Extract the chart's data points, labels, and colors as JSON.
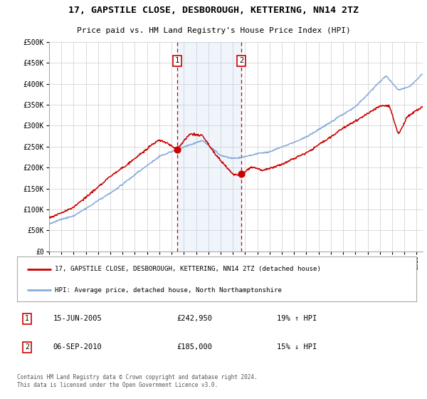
{
  "title": "17, GAPSTILE CLOSE, DESBOROUGH, KETTERING, NN14 2TZ",
  "subtitle": "Price paid vs. HM Land Registry's House Price Index (HPI)",
  "legend_line1": "17, GAPSTILE CLOSE, DESBOROUGH, KETTERING, NN14 2TZ (detached house)",
  "legend_line2": "HPI: Average price, detached house, North Northamptonshire",
  "footnote": "Contains HM Land Registry data © Crown copyright and database right 2024.\nThis data is licensed under the Open Government Licence v3.0.",
  "annotation1_date": "15-JUN-2005",
  "annotation1_price": "£242,950",
  "annotation1_hpi": "19% ↑ HPI",
  "annotation2_date": "06-SEP-2010",
  "annotation2_price": "£185,000",
  "annotation2_hpi": "15% ↓ HPI",
  "property_color": "#cc0000",
  "hpi_color": "#88aadd",
  "background_color": "#ffffff",
  "grid_color": "#cccccc",
  "annotation_band_color": "#ddeeff",
  "ylim": [
    0,
    500000
  ],
  "yticks": [
    0,
    50000,
    100000,
    150000,
    200000,
    250000,
    300000,
    350000,
    400000,
    450000,
    500000
  ],
  "sale1_year": 2005.45,
  "sale1_price": 242950,
  "sale2_year": 2010.68,
  "sale2_price": 185000,
  "xstart": 1995,
  "xend": 2025
}
